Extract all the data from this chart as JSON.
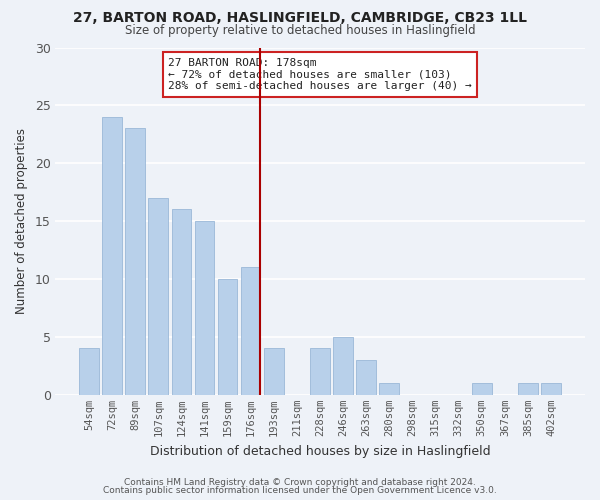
{
  "title_line1": "27, BARTON ROAD, HASLINGFIELD, CAMBRIDGE, CB23 1LL",
  "title_line2": "Size of property relative to detached houses in Haslingfield",
  "xlabel": "Distribution of detached houses by size in Haslingfield",
  "ylabel": "Number of detached properties",
  "bar_labels": [
    "54sqm",
    "72sqm",
    "89sqm",
    "107sqm",
    "124sqm",
    "141sqm",
    "159sqm",
    "176sqm",
    "193sqm",
    "211sqm",
    "228sqm",
    "246sqm",
    "263sqm",
    "280sqm",
    "298sqm",
    "315sqm",
    "332sqm",
    "350sqm",
    "367sqm",
    "385sqm",
    "402sqm"
  ],
  "bar_values": [
    4,
    24,
    23,
    17,
    16,
    15,
    10,
    11,
    4,
    0,
    4,
    5,
    3,
    1,
    0,
    0,
    0,
    1,
    0,
    1,
    1
  ],
  "bar_color": "#b8d0ea",
  "bar_edge_color": "#9ab8d8",
  "vline_color": "#aa0000",
  "annotation_title": "27 BARTON ROAD: 178sqm",
  "annotation_line1": "← 72% of detached houses are smaller (103)",
  "annotation_line2": "28% of semi-detached houses are larger (40) →",
  "annotation_box_edge": "#cc2222",
  "ylim": [
    0,
    30
  ],
  "yticks": [
    0,
    5,
    10,
    15,
    20,
    25,
    30
  ],
  "footer_line1": "Contains HM Land Registry data © Crown copyright and database right 2024.",
  "footer_line2": "Contains public sector information licensed under the Open Government Licence v3.0.",
  "background_color": "#eef2f8",
  "grid_color": "#ffffff",
  "title_fontsize": 10,
  "subtitle_fontsize": 8.5,
  "xlabel_fontsize": 9,
  "ylabel_fontsize": 8.5,
  "tick_fontsize": 7.5,
  "footer_fontsize": 6.5
}
